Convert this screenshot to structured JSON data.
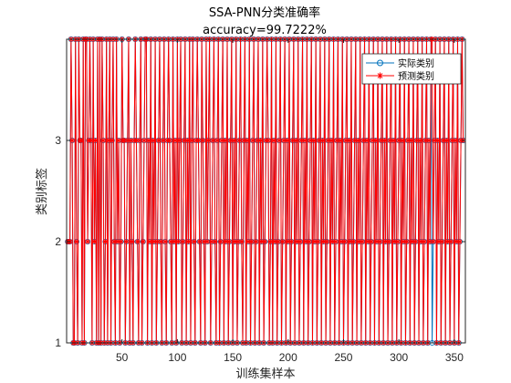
{
  "chart_data": {
    "type": "line",
    "title": "SSA-PNN分类准确率",
    "subtitle": "accuracy=99.7222%",
    "xlabel": "训练集样本",
    "ylabel": "类别标签",
    "xlim": [
      0,
      360
    ],
    "ylim": [
      1,
      4
    ],
    "xticks": [
      "50",
      "100",
      "150",
      "200",
      "250",
      "300",
      "350"
    ],
    "yticks": [
      "1",
      "2",
      "3"
    ],
    "grid": false,
    "legend": "top-right",
    "series": [
      {
        "name": "实际类别",
        "marker": "circle",
        "color": "#0072BD",
        "values": [
          2,
          2,
          2,
          4,
          3,
          1,
          1,
          4,
          2,
          1,
          4,
          3,
          3,
          1,
          4,
          1,
          4,
          4,
          2,
          3,
          4,
          3,
          1,
          4,
          2,
          3,
          1,
          4,
          1,
          4,
          1,
          4,
          3,
          1,
          2,
          4,
          1,
          3,
          4,
          1,
          3,
          4,
          2,
          1,
          4,
          2,
          3,
          1,
          2,
          4,
          3,
          3,
          1,
          2,
          3,
          4,
          1,
          3,
          2,
          1,
          3,
          4,
          3,
          2,
          1,
          3,
          4,
          1,
          2,
          3,
          4,
          4,
          1,
          3,
          2,
          4,
          1,
          3,
          2,
          4,
          1,
          2,
          3,
          4,
          2,
          1,
          3,
          4,
          2,
          1,
          3,
          4,
          3,
          2,
          1,
          4,
          2,
          3,
          1,
          4,
          2,
          3,
          4,
          1,
          2,
          3,
          4,
          1,
          3,
          2,
          4,
          1,
          3,
          4,
          2,
          1,
          3,
          4,
          3,
          2,
          1,
          4,
          3,
          2,
          1,
          4,
          2,
          3,
          4,
          1,
          2,
          3,
          4,
          2,
          1,
          3,
          4,
          1,
          2,
          3,
          4,
          1,
          3,
          2,
          4,
          1,
          2,
          3,
          4,
          1,
          3,
          2,
          4,
          1,
          2,
          3,
          4,
          2,
          1,
          3,
          4,
          1,
          3,
          2,
          4,
          1,
          2,
          3,
          4,
          1,
          2,
          3,
          4,
          1,
          3,
          2,
          4,
          1,
          2,
          3,
          4,
          3,
          1,
          2,
          4,
          1,
          3,
          2,
          4,
          1,
          2,
          3,
          4,
          1,
          2,
          3,
          4,
          1,
          3,
          2,
          4,
          1,
          2,
          3,
          4,
          1,
          3,
          2,
          4,
          1,
          2,
          3,
          4,
          1,
          3,
          2,
          4,
          1,
          2,
          3,
          4,
          1,
          3,
          2,
          4,
          1,
          2,
          3,
          4,
          1,
          3,
          2,
          4,
          1,
          2,
          3,
          4,
          1,
          3,
          2,
          4,
          1,
          2,
          3,
          4,
          1,
          3,
          2,
          4,
          1,
          2,
          3,
          4,
          1,
          3,
          2,
          4,
          1,
          2,
          3,
          4,
          1,
          3,
          2,
          4,
          1,
          2,
          3,
          4,
          1,
          3,
          2,
          4,
          1,
          2,
          3,
          4,
          1,
          3,
          2,
          4,
          1,
          2,
          3,
          4,
          1,
          3,
          2,
          4,
          1,
          2,
          3,
          4,
          1,
          3,
          2,
          4,
          1,
          2,
          3,
          4,
          1,
          3,
          2,
          4,
          1,
          2,
          3,
          4,
          1,
          3,
          2,
          4,
          1,
          2,
          3,
          4,
          1,
          3,
          2,
          4,
          1,
          2,
          3,
          4,
          1,
          3,
          2,
          4,
          1,
          2,
          3,
          4,
          1,
          3,
          2,
          4,
          1,
          2,
          3,
          4,
          1,
          3,
          2,
          4,
          1,
          2,
          3,
          4,
          1,
          3,
          2,
          4,
          1,
          2,
          3,
          4,
          3
        ]
      },
      {
        "name": "预测类别",
        "marker": "asterisk",
        "color": "#FF0000",
        "values": [
          2,
          2,
          2,
          4,
          3,
          1,
          1,
          4,
          2,
          1,
          4,
          3,
          3,
          1,
          4,
          1,
          4,
          4,
          2,
          3,
          4,
          3,
          1,
          4,
          2,
          3,
          1,
          4,
          1,
          4,
          1,
          4,
          3,
          1,
          2,
          4,
          1,
          3,
          4,
          1,
          3,
          4,
          2,
          1,
          4,
          2,
          3,
          1,
          2,
          4,
          3,
          3,
          1,
          2,
          3,
          4,
          1,
          3,
          2,
          1,
          3,
          4,
          3,
          2,
          1,
          3,
          4,
          1,
          2,
          3,
          4,
          4,
          1,
          3,
          2,
          4,
          1,
          3,
          2,
          4,
          1,
          2,
          3,
          4,
          2,
          1,
          3,
          4,
          2,
          1,
          3,
          4,
          3,
          2,
          1,
          4,
          2,
          3,
          1,
          4,
          2,
          3,
          4,
          1,
          2,
          3,
          4,
          1,
          3,
          2,
          4,
          1,
          3,
          4,
          2,
          1,
          3,
          4,
          3,
          2,
          1,
          4,
          3,
          2,
          1,
          4,
          2,
          3,
          4,
          1,
          2,
          3,
          4,
          2,
          1,
          3,
          4,
          1,
          2,
          3,
          4,
          1,
          3,
          2,
          4,
          1,
          2,
          3,
          4,
          1,
          3,
          2,
          4,
          1,
          2,
          3,
          4,
          2,
          1,
          3,
          4,
          1,
          3,
          2,
          4,
          1,
          2,
          3,
          4,
          1,
          2,
          3,
          4,
          1,
          3,
          2,
          4,
          1,
          2,
          3,
          4,
          3,
          1,
          2,
          4,
          1,
          3,
          2,
          4,
          1,
          2,
          3,
          4,
          1,
          2,
          3,
          4,
          1,
          3,
          2,
          4,
          1,
          2,
          3,
          4,
          1,
          3,
          2,
          4,
          1,
          2,
          3,
          4,
          1,
          3,
          2,
          4,
          1,
          2,
          3,
          4,
          1,
          3,
          2,
          4,
          1,
          2,
          3,
          4,
          1,
          3,
          2,
          4,
          1,
          2,
          3,
          4,
          1,
          3,
          2,
          4,
          1,
          2,
          3,
          4,
          1,
          3,
          2,
          4,
          1,
          2,
          3,
          4,
          1,
          3,
          2,
          4,
          1,
          2,
          3,
          4,
          1,
          3,
          2,
          4,
          1,
          2,
          3,
          4,
          1,
          3,
          2,
          4,
          1,
          2,
          3,
          4,
          1,
          3,
          2,
          4,
          1,
          2,
          3,
          4,
          1,
          3,
          2,
          4,
          1,
          2,
          3,
          4,
          1,
          3,
          2,
          4,
          1,
          2,
          3,
          4,
          1,
          3,
          2,
          4,
          1,
          2,
          3,
          4,
          1,
          3,
          2,
          4,
          1,
          2,
          3,
          4,
          1,
          3,
          2,
          4,
          1,
          2,
          3,
          4,
          1,
          3,
          2,
          4,
          4,
          2,
          3,
          4,
          1,
          3,
          2,
          4,
          1,
          2,
          3,
          4,
          1,
          3,
          2,
          4,
          1,
          2,
          3,
          4,
          1,
          3,
          2,
          4,
          1,
          2,
          3,
          4,
          3
        ]
      }
    ]
  }
}
